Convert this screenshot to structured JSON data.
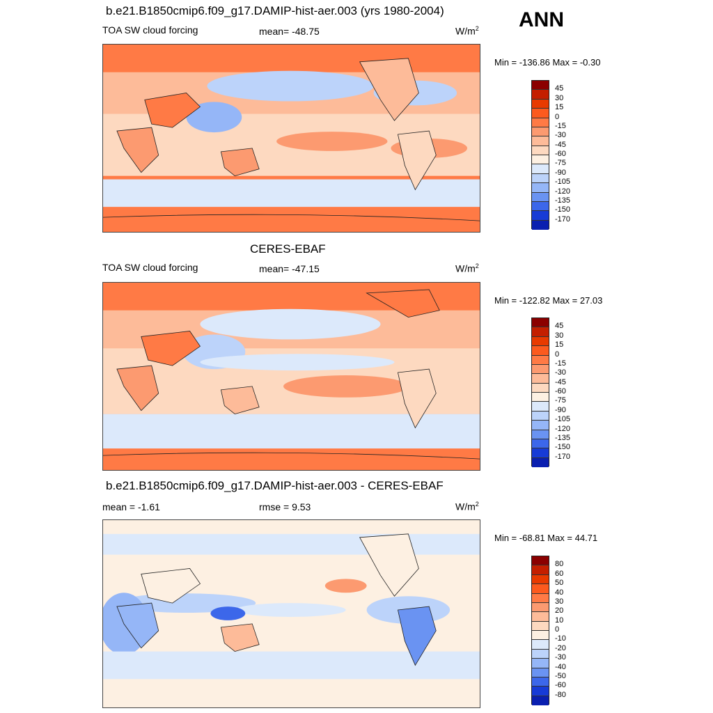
{
  "header": {
    "ann": "ANN"
  },
  "panels": [
    {
      "title": "b.e21.B1850cmip6.f09_g17.DAMIP-hist-aer.003 (yrs 1980-2004)",
      "left_label": "TOA SW cloud forcing",
      "center_label": "mean= -48.75",
      "units": "W/m",
      "units_exp": "2",
      "minmax": "Min = -136.86 Max =  -0.30",
      "colorbar_labels": [
        "45",
        "30",
        "15",
        "0",
        "-15",
        "-30",
        "-45",
        "-60",
        "-75",
        "-90",
        "-105",
        "-120",
        "-135",
        "-150",
        "-170"
      ]
    },
    {
      "title": "CERES-EBAF",
      "left_label": "TOA SW cloud forcing",
      "center_label": "mean= -47.15",
      "units": "W/m",
      "units_exp": "2",
      "minmax": "Min = -122.82 Max =  27.03",
      "colorbar_labels": [
        "45",
        "30",
        "15",
        "0",
        "-15",
        "-30",
        "-45",
        "-60",
        "-75",
        "-90",
        "-105",
        "-120",
        "-135",
        "-150",
        "-170"
      ]
    },
    {
      "title": "b.e21.B1850cmip6.f09_g17.DAMIP-hist-aer.003 - CERES-EBAF",
      "left_label": "mean =  -1.61",
      "center_label": "rmse =    9.53",
      "units": "W/m",
      "units_exp": "2",
      "minmax": "Min = -68.81 Max =  44.71",
      "colorbar_labels": [
        "80",
        "60",
        "50",
        "40",
        "30",
        "20",
        "10",
        "0",
        "-10",
        "-20",
        "-30",
        "-40",
        "-50",
        "-60",
        "-80"
      ]
    }
  ],
  "colors": {
    "scale": [
      "#8b0000",
      "#c41f00",
      "#e83a00",
      "#fc5a1e",
      "#ff7a45",
      "#fc9a70",
      "#fdbb99",
      "#fdd9c0",
      "#fdf0e2",
      "#dce9fb",
      "#bcd3fa",
      "#95b6f7",
      "#6a93f2",
      "#3c67ea",
      "#173bd6",
      "#0a1fb0",
      "#00008b"
    ]
  }
}
